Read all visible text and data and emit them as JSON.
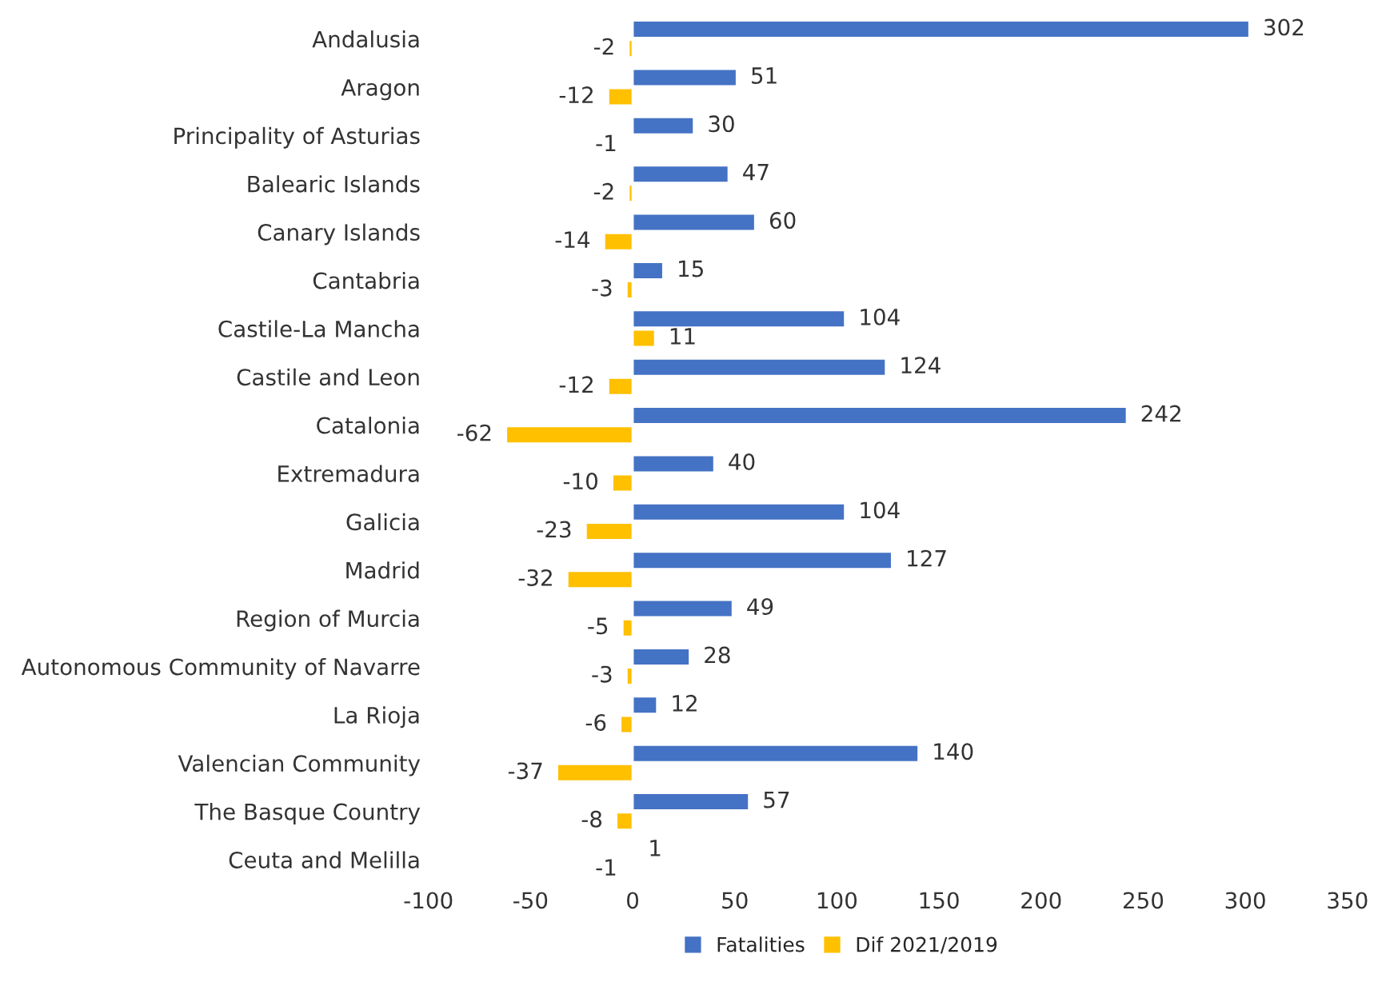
{
  "chart_data": {
    "type": "bar",
    "orientation": "horizontal",
    "categories": [
      "Andalusia",
      "Aragon",
      "Principality of Asturias",
      "Balearic Islands",
      "Canary Islands",
      "Cantabria",
      "Castile-La Mancha",
      "Castile and Leon",
      "Catalonia",
      "Extremadura",
      "Galicia",
      "Madrid",
      "Region of Murcia",
      "Autonomous Community of Navarre",
      "La Rioja",
      "Valencian Community",
      "The Basque Country",
      "Ceuta and Melilla"
    ],
    "series": [
      {
        "name": "Fatalities",
        "color": "#4472c4",
        "values": [
          302,
          51,
          30,
          47,
          60,
          15,
          104,
          124,
          242,
          40,
          104,
          127,
          49,
          28,
          12,
          140,
          57,
          1
        ]
      },
      {
        "name": "Dif 2021/2019",
        "color": "#ffc000",
        "values": [
          -2,
          -12,
          -1,
          -2,
          -14,
          -3,
          11,
          -12,
          -62,
          -10,
          -23,
          -32,
          -5,
          -3,
          -6,
          -37,
          -8,
          -1
        ]
      }
    ],
    "xlim": [
      -100,
      350
    ],
    "xticks": [
      -100,
      -50,
      0,
      50,
      100,
      150,
      200,
      250,
      300,
      350
    ],
    "data_labels": true,
    "legend": "bottom",
    "grid": false
  }
}
